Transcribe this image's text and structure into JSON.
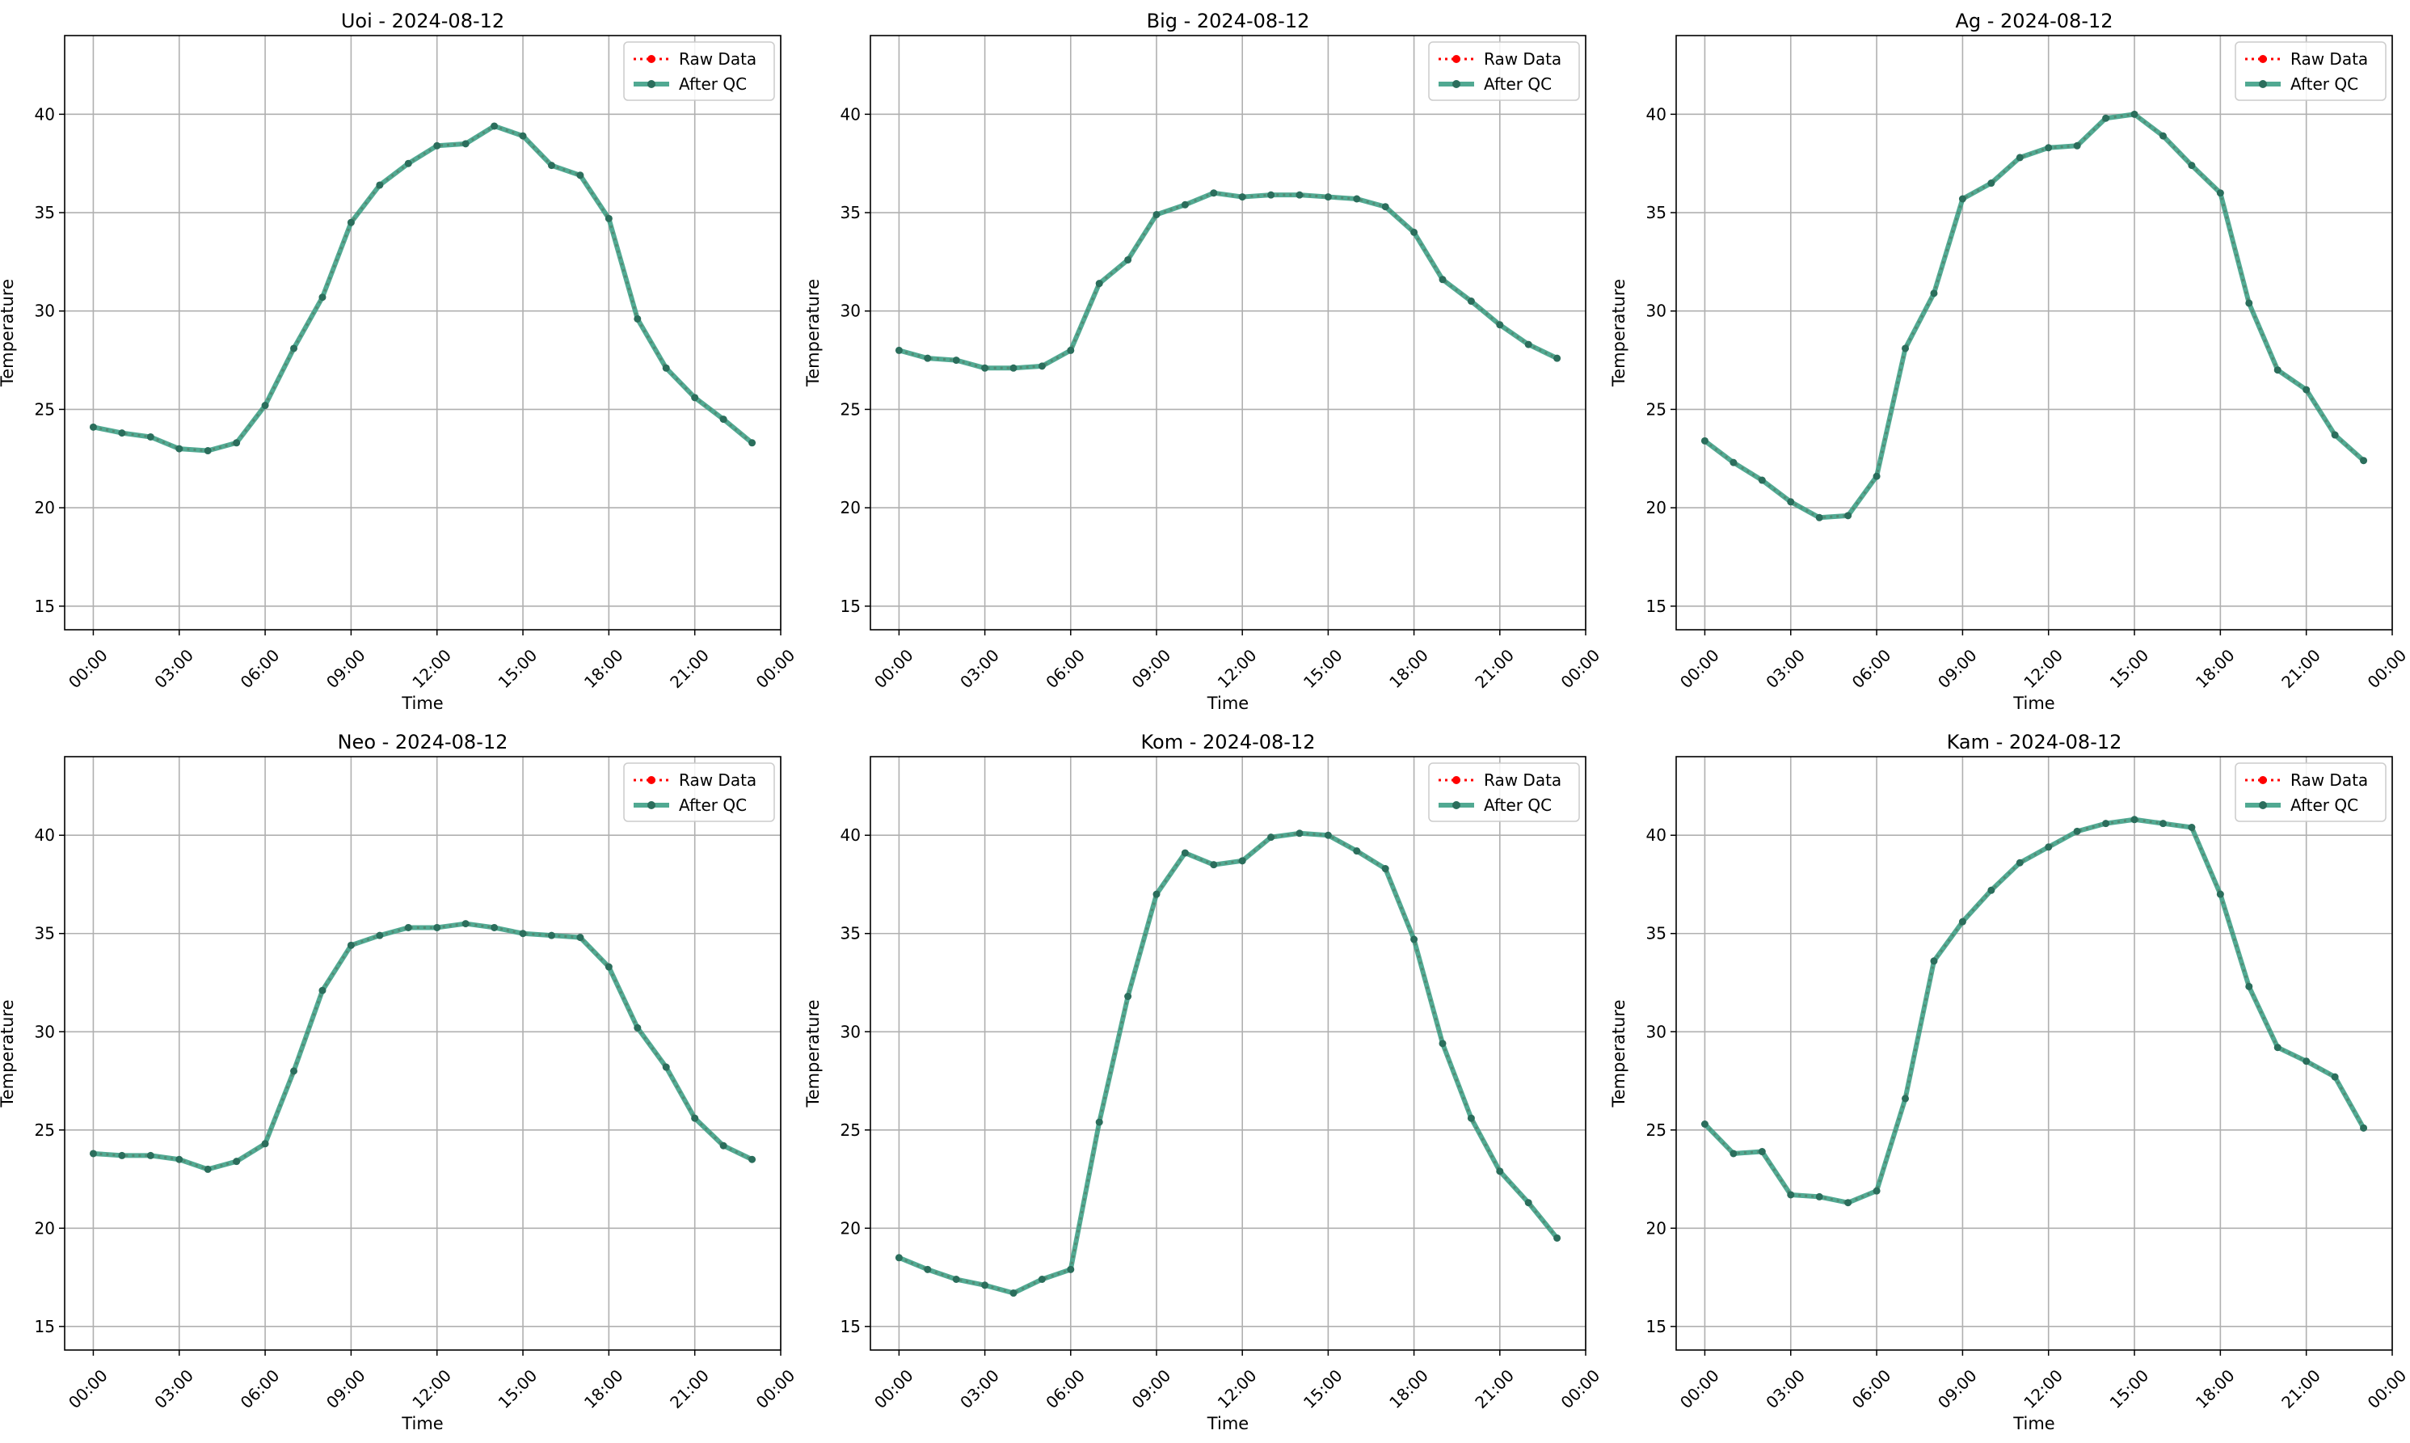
{
  "figure": {
    "legend": {
      "raw_label": "Raw Data",
      "qc_label": "After QC"
    },
    "x_tick_labels": [
      "00:00",
      "03:00",
      "06:00",
      "09:00",
      "12:00",
      "15:00",
      "18:00",
      "21:00",
      "00:00"
    ],
    "y_tick_labels": [
      "15",
      "20",
      "25",
      "30",
      "35",
      "40"
    ],
    "colors": {
      "raw": "#ff0000",
      "qc": "#3a9e84",
      "qc_marker": "#2b6e5c",
      "grid": "#b0b0b0"
    }
  },
  "chart_data": [
    {
      "type": "line",
      "title": "Uoi - 2024-08-12",
      "xlabel": "Time",
      "ylabel": "Temperature",
      "x_hours": [
        0,
        1,
        2,
        3,
        4,
        5,
        6,
        7,
        8,
        9,
        10,
        11,
        12,
        13,
        14,
        15,
        16,
        17,
        18,
        19,
        20,
        21,
        22,
        23
      ],
      "xlim": [
        -1,
        24
      ],
      "ylim": [
        13.8,
        44
      ],
      "grid": true,
      "legend_position": "upper right",
      "series": [
        {
          "name": "Raw Data",
          "values": [
            24.1,
            23.8,
            23.6,
            23.0,
            22.9,
            23.3,
            25.2,
            28.1,
            30.7,
            34.5,
            36.4,
            37.5,
            38.4,
            38.5,
            39.4,
            38.9,
            37.4,
            36.9,
            34.7,
            29.6,
            27.1,
            25.6,
            24.5,
            23.3
          ]
        },
        {
          "name": "After QC",
          "values": [
            24.1,
            23.8,
            23.6,
            23.0,
            22.9,
            23.3,
            25.2,
            28.1,
            30.7,
            34.5,
            36.4,
            37.5,
            38.4,
            38.5,
            39.4,
            38.9,
            37.4,
            36.9,
            34.7,
            29.6,
            27.1,
            25.6,
            24.5,
            23.3
          ]
        }
      ]
    },
    {
      "type": "line",
      "title": "Big - 2024-08-12",
      "xlabel": "Time",
      "ylabel": "Temperature",
      "x_hours": [
        0,
        1,
        2,
        3,
        4,
        5,
        6,
        7,
        8,
        9,
        10,
        11,
        12,
        13,
        14,
        15,
        16,
        17,
        18,
        19,
        20,
        21,
        22,
        23
      ],
      "xlim": [
        -1,
        24
      ],
      "ylim": [
        13.8,
        44
      ],
      "grid": true,
      "legend_position": "upper right",
      "series": [
        {
          "name": "Raw Data",
          "values": [
            28.0,
            27.6,
            27.5,
            27.1,
            27.1,
            27.2,
            28.0,
            31.4,
            32.6,
            34.9,
            35.4,
            36.0,
            35.8,
            35.9,
            35.9,
            35.8,
            35.7,
            35.3,
            34.0,
            31.6,
            30.5,
            29.3,
            28.3,
            27.6
          ]
        },
        {
          "name": "After QC",
          "values": [
            28.0,
            27.6,
            27.5,
            27.1,
            27.1,
            27.2,
            28.0,
            31.4,
            32.6,
            34.9,
            35.4,
            36.0,
            35.8,
            35.9,
            35.9,
            35.8,
            35.7,
            35.3,
            34.0,
            31.6,
            30.5,
            29.3,
            28.3,
            27.6
          ]
        }
      ]
    },
    {
      "type": "line",
      "title": "Ag - 2024-08-12",
      "xlabel": "Time",
      "ylabel": "Temperature",
      "x_hours": [
        0,
        1,
        2,
        3,
        4,
        5,
        6,
        7,
        8,
        9,
        10,
        11,
        12,
        13,
        14,
        15,
        16,
        17,
        18,
        19,
        20,
        21,
        22,
        23
      ],
      "xlim": [
        -1,
        24
      ],
      "ylim": [
        13.8,
        44
      ],
      "grid": true,
      "legend_position": "upper right",
      "series": [
        {
          "name": "Raw Data",
          "values": [
            23.4,
            22.3,
            21.4,
            20.3,
            19.5,
            19.6,
            21.6,
            28.1,
            30.9,
            35.7,
            36.5,
            37.8,
            38.3,
            38.4,
            39.8,
            40.0,
            38.9,
            37.4,
            36.0,
            30.4,
            27.0,
            26.0,
            23.7,
            22.4
          ]
        },
        {
          "name": "After QC",
          "values": [
            23.4,
            22.3,
            21.4,
            20.3,
            19.5,
            19.6,
            21.6,
            28.1,
            30.9,
            35.7,
            36.5,
            37.8,
            38.3,
            38.4,
            39.8,
            40.0,
            38.9,
            37.4,
            36.0,
            30.4,
            27.0,
            26.0,
            23.7,
            22.4
          ]
        }
      ]
    },
    {
      "type": "line",
      "title": "Neo - 2024-08-12",
      "xlabel": "Time",
      "ylabel": "Temperature",
      "x_hours": [
        0,
        1,
        2,
        3,
        4,
        5,
        6,
        7,
        8,
        9,
        10,
        11,
        12,
        13,
        14,
        15,
        16,
        17,
        18,
        19,
        20,
        21,
        22,
        23
      ],
      "xlim": [
        -1,
        24
      ],
      "ylim": [
        13.8,
        44
      ],
      "grid": true,
      "legend_position": "upper right",
      "series": [
        {
          "name": "Raw Data",
          "values": [
            23.8,
            23.7,
            23.7,
            23.5,
            23.0,
            23.4,
            24.3,
            28.0,
            32.1,
            34.4,
            34.9,
            35.3,
            35.3,
            35.5,
            35.3,
            35.0,
            34.9,
            34.8,
            33.3,
            30.2,
            28.2,
            25.6,
            24.2,
            23.5
          ]
        },
        {
          "name": "After QC",
          "values": [
            23.8,
            23.7,
            23.7,
            23.5,
            23.0,
            23.4,
            24.3,
            28.0,
            32.1,
            34.4,
            34.9,
            35.3,
            35.3,
            35.5,
            35.3,
            35.0,
            34.9,
            34.8,
            33.3,
            30.2,
            28.2,
            25.6,
            24.2,
            23.5
          ]
        }
      ]
    },
    {
      "type": "line",
      "title": "Kom - 2024-08-12",
      "xlabel": "Time",
      "ylabel": "Temperature",
      "x_hours": [
        0,
        1,
        2,
        3,
        4,
        5,
        6,
        7,
        8,
        9,
        10,
        11,
        12,
        13,
        14,
        15,
        16,
        17,
        18,
        19,
        20,
        21,
        22,
        23
      ],
      "xlim": [
        -1,
        24
      ],
      "ylim": [
        13.8,
        44
      ],
      "grid": true,
      "legend_position": "upper right",
      "series": [
        {
          "name": "Raw Data",
          "values": [
            18.5,
            17.9,
            17.4,
            17.1,
            16.7,
            17.4,
            17.9,
            25.4,
            31.8,
            37.0,
            39.1,
            38.5,
            38.7,
            39.9,
            40.1,
            40.0,
            39.2,
            38.3,
            34.7,
            29.4,
            25.6,
            22.9,
            21.3,
            19.5
          ]
        },
        {
          "name": "After QC",
          "values": [
            18.5,
            17.9,
            17.4,
            17.1,
            16.7,
            17.4,
            17.9,
            25.4,
            31.8,
            37.0,
            39.1,
            38.5,
            38.7,
            39.9,
            40.1,
            40.0,
            39.2,
            38.3,
            34.7,
            29.4,
            25.6,
            22.9,
            21.3,
            19.5
          ]
        }
      ]
    },
    {
      "type": "line",
      "title": "Kam - 2024-08-12",
      "xlabel": "Time",
      "ylabel": "Temperature",
      "x_hours": [
        0,
        1,
        2,
        3,
        4,
        5,
        6,
        7,
        8,
        9,
        10,
        11,
        12,
        13,
        14,
        15,
        16,
        17,
        18,
        19,
        20,
        21,
        22,
        23
      ],
      "xlim": [
        -1,
        24
      ],
      "ylim": [
        13.8,
        44
      ],
      "grid": true,
      "legend_position": "upper right",
      "series": [
        {
          "name": "Raw Data",
          "values": [
            25.3,
            23.8,
            23.9,
            21.7,
            21.6,
            21.3,
            21.9,
            26.6,
            33.6,
            35.6,
            37.2,
            38.6,
            39.4,
            40.2,
            40.6,
            40.8,
            40.6,
            40.4,
            37.0,
            32.3,
            29.2,
            28.5,
            27.7,
            25.1
          ]
        },
        {
          "name": "After QC",
          "values": [
            25.3,
            23.8,
            23.9,
            21.7,
            21.6,
            21.3,
            21.9,
            26.6,
            33.6,
            35.6,
            37.2,
            38.6,
            39.4,
            40.2,
            40.6,
            40.8,
            40.6,
            40.4,
            37.0,
            32.3,
            29.2,
            28.5,
            27.7,
            25.1
          ]
        }
      ]
    }
  ]
}
